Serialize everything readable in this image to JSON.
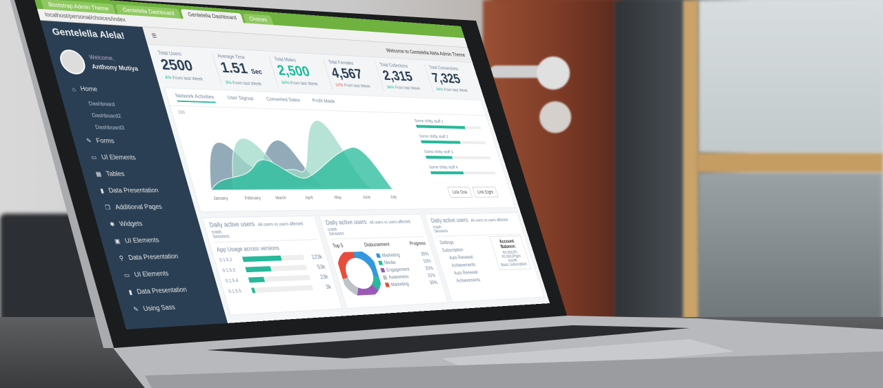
{
  "browser": {
    "tabs": [
      "Bootstrap Admin Theme",
      "Gentelella Dashboard",
      "Gentelella Dashboard",
      "Choices"
    ],
    "url": "localhost/personal/choices/index"
  },
  "sidebar": {
    "brand": "Gentelella Alela!",
    "welcome": "Welcome,",
    "user": "Anthony Mutiya",
    "items": [
      {
        "label": "Home",
        "icon": "home-icon"
      },
      {
        "label": "Dashboard",
        "sub": true
      },
      {
        "label": "Dashboard2",
        "sub": true
      },
      {
        "label": "Dashboard3",
        "sub": true
      },
      {
        "label": "Forms",
        "icon": "edit-icon"
      },
      {
        "label": "UI Elements",
        "icon": "desktop-icon"
      },
      {
        "label": "Tables",
        "icon": "table-icon"
      },
      {
        "label": "Data Presentation",
        "icon": "bar-chart-icon"
      },
      {
        "label": "Additional Pages",
        "icon": "clone-icon"
      },
      {
        "label": "Widgets",
        "icon": "bug-icon"
      },
      {
        "label": "UI Elements",
        "icon": "windows-icon"
      },
      {
        "label": "Data Presentation",
        "icon": "sitemap-icon"
      },
      {
        "label": "UI Elements",
        "icon": "laptop-icon"
      },
      {
        "label": "Data Presentation",
        "icon": "bar-chart-icon"
      },
      {
        "label": "Using Sass",
        "icon": "pencil-icon"
      }
    ]
  },
  "topbar": {
    "welcome": "Welcome to Gentelella Alela Admin Theme",
    "menu_icon": "hamburger-icon"
  },
  "stats": [
    {
      "label": "Total Users",
      "value": "2500",
      "unit": "",
      "delta": "4%",
      "note": "From last Week",
      "trend": "up"
    },
    {
      "label": "Average Time",
      "value": "1.51",
      "unit": "Sec",
      "delta": "3%",
      "note": "From last Week",
      "trend": "up"
    },
    {
      "label": "Total Males",
      "value": "2,500",
      "unit": "",
      "delta": "34%",
      "note": "From last Week",
      "trend": "up",
      "highlight": true
    },
    {
      "label": "Total Females",
      "value": "4,567",
      "unit": "",
      "delta": "12%",
      "note": "From last Week",
      "trend": "down"
    },
    {
      "label": "Total Collections",
      "value": "2,315",
      "unit": "",
      "delta": "34%",
      "note": "From last Week",
      "trend": "up"
    },
    {
      "label": "Total Connections",
      "value": "7,325",
      "unit": "",
      "delta": "34%",
      "note": "From last Week",
      "trend": "up"
    }
  ],
  "chart": {
    "tabs": [
      "Network Activities",
      "User Signup",
      "Converted Sales",
      "Profit Made"
    ],
    "y_top": "100",
    "months": [
      "January",
      "February",
      "March",
      "April",
      "May",
      "June",
      "July"
    ],
    "progress": [
      {
        "label": "Some shitty stuff 1",
        "value": 75
      },
      {
        "label": "Some shitty stuff 2",
        "value": 60
      },
      {
        "label": "Some shitty stuff 3",
        "value": 40
      },
      {
        "label": "Some shitty stuff 4",
        "value": 50
      }
    ],
    "buttons": [
      "Link One",
      "Link Eight"
    ],
    "colors": {
      "teal": "#26b99a",
      "slate": "#6f8fa0",
      "mint": "#9fd9c9"
    }
  },
  "panels": [
    {
      "title": "Daily active users",
      "hint": "All users vs users affected crash",
      "sub": "Sessions",
      "heading": "App Usage across versions",
      "versions": [
        {
          "label": "0.1.5.2",
          "value": "123k",
          "fill": 0.62
        },
        {
          "label": "0.1.5.3",
          "value": "53k",
          "fill": 0.4
        },
        {
          "label": "0.1.5.4",
          "value": "23k",
          "fill": 0.25
        },
        {
          "label": "0.1.5.5",
          "value": "3k",
          "fill": 0.05
        }
      ]
    },
    {
      "title": "Daily active users",
      "hint": "All users vs users affected crash",
      "sub": "Sessions",
      "cols": [
        "Top 5",
        "Disbursement",
        "Progress"
      ],
      "legend": [
        {
          "label": "Marketing",
          "pct": "30%",
          "color": "#3498db"
        },
        {
          "label": "Media",
          "pct": "10%",
          "color": "#26b99a"
        },
        {
          "label": "Engagement",
          "pct": "20%",
          "color": "#9b59b6"
        },
        {
          "label": "Awareness",
          "pct": "15%",
          "color": "#bdc3c7"
        },
        {
          "label": "Marketing",
          "pct": "30%",
          "color": "#e74c3c"
        }
      ]
    },
    {
      "title": "Daily active users",
      "hint": "All users vs users affected crash",
      "sub": "Sessions",
      "list": [
        "Settings",
        "Subscription",
        "Auto Renewal",
        "Achievements",
        "Auto Renewal",
        "Achievements"
      ],
      "account": {
        "title": "Account Balance:",
        "line1": "€0.00(UP)",
        "line2": "€0.00(UP)per month",
        "line3": "Basic Subscription"
      }
    }
  ]
}
